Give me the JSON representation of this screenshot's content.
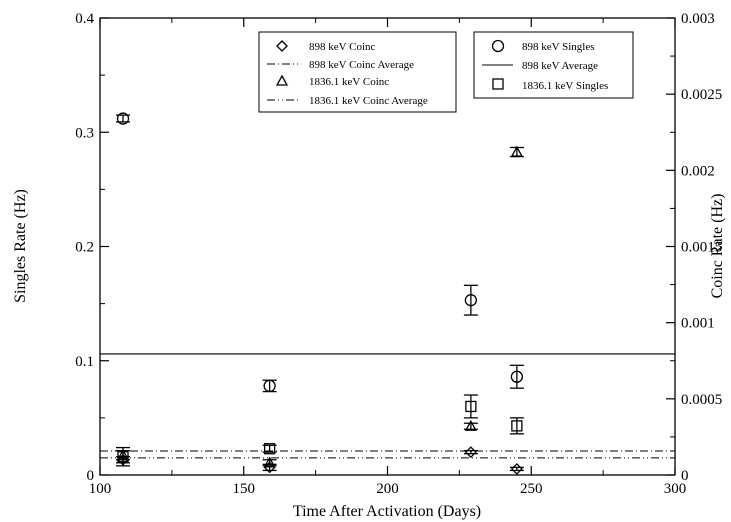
{
  "chart_data": {
    "type": "scatter",
    "title": "",
    "xlabel": "Time After Activation (Days)",
    "ylabel_left": "Singles Rate (Hz)",
    "ylabel_right": "Coinc Rate (Hz)",
    "xlim": [
      100,
      300
    ],
    "ylim_left": [
      0,
      0.4
    ],
    "ylim_right": [
      0,
      0.003
    ],
    "x_ticks": [
      100,
      150,
      200,
      250,
      300
    ],
    "y_ticks_left": [
      0,
      0.1,
      0.2,
      0.3,
      0.4
    ],
    "y_ticks_right": [
      0,
      0.0005,
      0.001,
      0.0015,
      0.002,
      0.0025,
      0.003
    ],
    "y_tick_labels_left": [
      "0",
      "0.1",
      "0.2",
      "0.3",
      "0.4"
    ],
    "y_tick_labels_right": [
      "0",
      "0.0005",
      "0.001",
      "0.0015",
      "0.002",
      "0.0025",
      "0.003"
    ],
    "x_tick_labels": [
      "100",
      "150",
      "200",
      "250",
      "300"
    ],
    "grid": false,
    "series": [
      {
        "name": "898 keV Coinc",
        "axis": "right",
        "marker": "diamond",
        "points": [
          {
            "x": 108,
            "y": 0.0001,
            "err": 2e-05
          },
          {
            "x": 159,
            "y": 5e-05,
            "err": 2e-05
          },
          {
            "x": 229,
            "y": 0.00015,
            "err": 1e-05
          },
          {
            "x": 245,
            "y": 4e-05,
            "err": 1e-05
          }
        ]
      },
      {
        "name": "898 keV Coinc Average",
        "axis": "left",
        "line": "dashdot",
        "value": 0.021
      },
      {
        "name": "1836.1 keV Coinc",
        "axis": "right",
        "marker": "triangle",
        "points": [
          {
            "x": 108,
            "y": 0.00013,
            "err": 3e-05
          },
          {
            "x": 159,
            "y": 8e-05,
            "err": 2e-05
          },
          {
            "x": 229,
            "y": 0.00032,
            "err": 2e-05
          },
          {
            "x": 245,
            "y": 0.00212,
            "err": 3e-05
          }
        ]
      },
      {
        "name": "1836.1 keV Coinc Average",
        "axis": "left",
        "line": "dashdotdot",
        "value": 0.015
      },
      {
        "name": "898 keV Singles",
        "axis": "left",
        "marker": "circle",
        "points": [
          {
            "x": 108,
            "y": 0.312,
            "err": 0.003
          },
          {
            "x": 159,
            "y": 0.078,
            "err": 0.005
          },
          {
            "x": 229,
            "y": 0.153,
            "err": 0.013
          },
          {
            "x": 245,
            "y": 0.086,
            "err": 0.01
          }
        ]
      },
      {
        "name": "898 keV Average",
        "axis": "left",
        "line": "solid",
        "value": 0.106
      },
      {
        "name": "1836.1 keV Singles",
        "axis": "left",
        "marker": "square",
        "points": [
          {
            "x": 108,
            "y": 0.016,
            "err": 0.008
          },
          {
            "x": 159,
            "y": 0.023,
            "err": 0.003
          },
          {
            "x": 229,
            "y": 0.06,
            "err": 0.01
          },
          {
            "x": 245,
            "y": 0.043,
            "err": 0.007
          }
        ]
      }
    ],
    "legends": [
      {
        "placement": "top-center",
        "entries": [
          "898 keV Coinc",
          "898 keV Coinc Average",
          "1836.1 keV Coinc",
          "1836.1 keV Coinc Average"
        ]
      },
      {
        "placement": "top-right",
        "entries": [
          "898 keV Singles",
          "898 keV Average",
          "1836.1 keV Singles"
        ]
      }
    ]
  }
}
